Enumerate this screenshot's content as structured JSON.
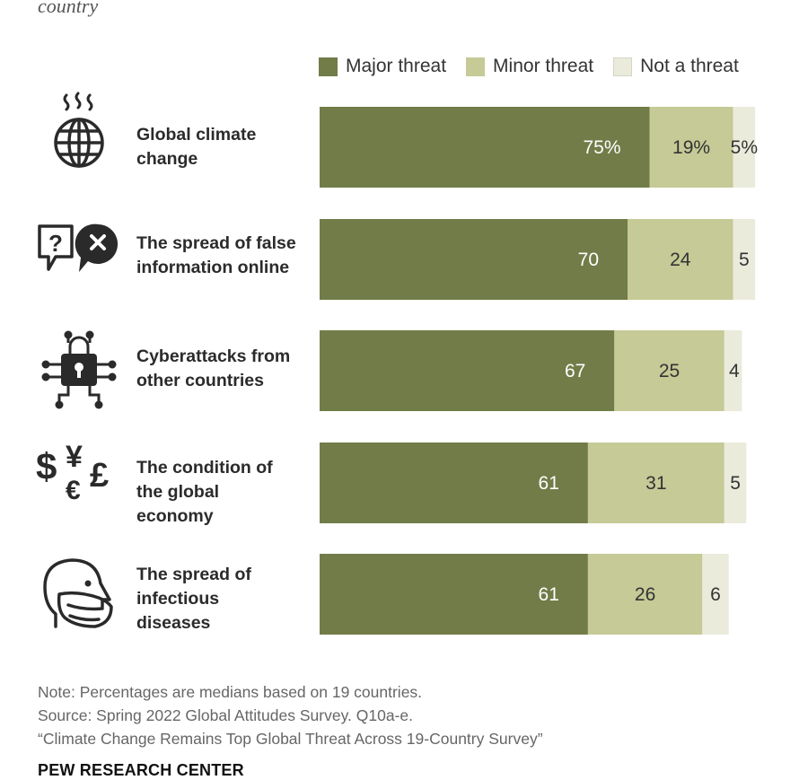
{
  "subtitle": "country",
  "legend": [
    {
      "label": "Major threat",
      "color": "#717c48"
    },
    {
      "label": "Minor threat",
      "color": "#c5ca96"
    },
    {
      "label": "Not a threat",
      "color": "#eaebdb"
    }
  ],
  "chart_data": {
    "type": "bar",
    "orientation": "horizontal",
    "stacked": true,
    "categories": [
      "Global climate change",
      "The spread of false information online",
      "Cyberattacks from other countries",
      "The condition of the global economy",
      "The spread of infectious diseases"
    ],
    "series": [
      {
        "name": "Major threat",
        "values": [
          75,
          70,
          67,
          61,
          61
        ]
      },
      {
        "name": "Minor threat",
        "values": [
          19,
          24,
          25,
          31,
          26
        ]
      },
      {
        "name": "Not a threat",
        "values": [
          5,
          5,
          4,
          5,
          6
        ]
      }
    ],
    "value_labels": [
      [
        "75%",
        "19%",
        "5%"
      ],
      [
        "70",
        "24",
        "5"
      ],
      [
        "67",
        "25",
        "4"
      ],
      [
        "61",
        "31",
        "5"
      ],
      [
        "61",
        "26",
        "6"
      ]
    ],
    "xlim": [
      0,
      100
    ],
    "xlabel": "",
    "ylabel": ""
  },
  "rows": [
    {
      "label_lines": [
        "Global climate",
        "change"
      ],
      "icon": "globe-heat-icon"
    },
    {
      "label_lines": [
        "The spread of false",
        "information online"
      ],
      "icon": "speech-bubbles-icon"
    },
    {
      "label_lines": [
        "Cyberattacks from",
        "other countries"
      ],
      "icon": "padlock-circuit-icon"
    },
    {
      "label_lines": [
        "The condition of",
        "the global",
        "economy"
      ],
      "icon": "currency-symbols-icon"
    },
    {
      "label_lines": [
        "The spread of",
        "infectious",
        "diseases"
      ],
      "icon": "face-mask-icon"
    }
  ],
  "currency_glyphs": {
    "dollar": "$",
    "yen": "¥",
    "euro": "€",
    "pound": "£"
  },
  "notes": {
    "note": "Note: Percentages are medians based on 19 countries.",
    "source": "Source: Spring 2022 Global Attitudes Survey. Q10a-e.",
    "report": "“Climate Change Remains Top Global Threat Across 19-Country Survey”"
  },
  "brand": "PEW RESEARCH CENTER"
}
